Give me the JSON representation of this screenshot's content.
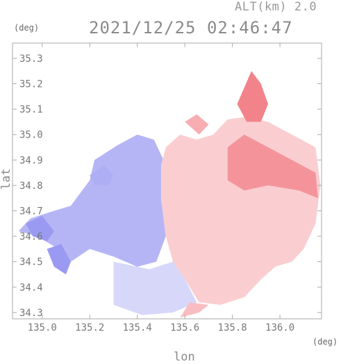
{
  "header": {
    "alt": "ALT(km) 2.0",
    "timestamp": "2021/12/25 02:46:47",
    "lat_unit": "(deg)",
    "lon_unit": "(deg)"
  },
  "chart_data": {
    "type": "heatmap",
    "title": "2021/12/25 02:46:47",
    "subtitle": "ALT(km) 2.0",
    "xlabel": "lon",
    "ylabel": "lat",
    "x_unit": "(deg)",
    "y_unit": "(deg)",
    "xlim": [
      134.875,
      136.175
    ],
    "ylim": [
      34.275,
      35.36
    ],
    "x_ticks": [
      135.0,
      135.2,
      135.4,
      135.6,
      135.8,
      136.0
    ],
    "x_tick_labels": [
      "135.0",
      "135.2",
      "135.4",
      "135.6",
      "135.8",
      "136.0"
    ],
    "y_ticks": [
      34.3,
      34.4,
      34.5,
      34.6,
      34.7,
      34.8,
      34.9,
      35.0,
      35.1,
      35.2,
      35.3
    ],
    "y_tick_labels": [
      "34.3",
      "34.4",
      "34.5",
      "34.6",
      "34.7",
      "34.8",
      "34.9",
      "35.0",
      "35.1",
      "35.2",
      "35.3"
    ],
    "colors": {
      "approaching": "#7878ee",
      "receding": "#ee5a64",
      "frame": "#aaaaaa"
    },
    "regions": [
      {
        "polarity": -1,
        "strength": 0.55,
        "points": [
          [
            134.9,
            34.62
          ],
          [
            134.95,
            34.67
          ],
          [
            135.05,
            34.7
          ],
          [
            135.12,
            34.72
          ],
          [
            135.2,
            34.82
          ],
          [
            135.22,
            34.9
          ],
          [
            135.32,
            34.96
          ],
          [
            135.4,
            35.0
          ],
          [
            135.47,
            34.98
          ],
          [
            135.52,
            34.88
          ],
          [
            135.5,
            34.75
          ],
          [
            135.52,
            34.6
          ],
          [
            135.48,
            34.5
          ],
          [
            135.4,
            34.48
          ],
          [
            135.3,
            34.52
          ],
          [
            135.2,
            34.55
          ],
          [
            135.12,
            34.5
          ],
          [
            135.05,
            34.56
          ],
          [
            134.98,
            34.6
          ]
        ]
      },
      {
        "polarity": -1,
        "strength": 0.3,
        "points": [
          [
            135.3,
            34.5
          ],
          [
            135.45,
            34.47
          ],
          [
            135.55,
            34.5
          ],
          [
            135.6,
            34.43
          ],
          [
            135.65,
            34.34
          ],
          [
            135.55,
            34.3
          ],
          [
            135.42,
            34.29
          ],
          [
            135.3,
            34.33
          ]
        ]
      },
      {
        "polarity": -1,
        "strength": 0.75,
        "points": [
          [
            134.93,
            34.65
          ],
          [
            135.0,
            34.68
          ],
          [
            135.05,
            34.62
          ],
          [
            135.02,
            34.58
          ],
          [
            134.96,
            34.6
          ]
        ]
      },
      {
        "polarity": -1,
        "strength": 0.75,
        "points": [
          [
            135.02,
            34.55
          ],
          [
            135.08,
            34.57
          ],
          [
            135.12,
            34.5
          ],
          [
            135.1,
            34.45
          ],
          [
            135.05,
            34.48
          ]
        ]
      },
      {
        "polarity": -1,
        "strength": 0.6,
        "points": [
          [
            135.2,
            34.84
          ],
          [
            135.26,
            34.88
          ],
          [
            135.3,
            34.84
          ],
          [
            135.28,
            34.8
          ],
          [
            135.22,
            34.8
          ]
        ]
      },
      {
        "polarity": 1,
        "strength": 0.3,
        "points": [
          [
            135.5,
            34.88
          ],
          [
            135.52,
            34.95
          ],
          [
            135.58,
            35.0
          ],
          [
            135.65,
            34.98
          ],
          [
            135.72,
            35.0
          ],
          [
            135.78,
            35.06
          ],
          [
            135.86,
            35.07
          ],
          [
            135.95,
            35.05
          ],
          [
            136.05,
            35.0
          ],
          [
            136.15,
            34.95
          ],
          [
            136.17,
            34.8
          ],
          [
            136.15,
            34.65
          ],
          [
            136.1,
            34.55
          ],
          [
            136.05,
            34.5
          ],
          [
            135.98,
            34.48
          ],
          [
            135.92,
            34.43
          ],
          [
            135.85,
            34.36
          ],
          [
            135.75,
            34.33
          ],
          [
            135.66,
            34.34
          ],
          [
            135.6,
            34.43
          ],
          [
            135.55,
            34.5
          ],
          [
            135.52,
            34.6
          ],
          [
            135.5,
            34.75
          ]
        ]
      },
      {
        "polarity": 1,
        "strength": 0.65,
        "points": [
          [
            135.78,
            34.95
          ],
          [
            135.85,
            35.0
          ],
          [
            135.95,
            34.95
          ],
          [
            136.05,
            34.9
          ],
          [
            136.15,
            34.85
          ],
          [
            136.16,
            34.75
          ],
          [
            136.08,
            34.78
          ],
          [
            135.95,
            34.8
          ],
          [
            135.85,
            34.78
          ],
          [
            135.78,
            34.82
          ]
        ]
      },
      {
        "polarity": 1,
        "strength": 0.75,
        "points": [
          [
            135.82,
            35.12
          ],
          [
            135.88,
            35.25
          ],
          [
            135.92,
            35.2
          ],
          [
            135.95,
            35.12
          ],
          [
            135.92,
            35.05
          ],
          [
            135.86,
            35.05
          ]
        ]
      },
      {
        "polarity": 1,
        "strength": 0.5,
        "points": [
          [
            135.6,
            35.05
          ],
          [
            135.65,
            35.08
          ],
          [
            135.7,
            35.04
          ],
          [
            135.66,
            35.0
          ]
        ]
      },
      {
        "polarity": 1,
        "strength": 0.4,
        "points": [
          [
            135.58,
            34.28
          ],
          [
            135.66,
            34.3
          ],
          [
            135.7,
            34.33
          ],
          [
            135.62,
            34.34
          ]
        ]
      }
    ]
  }
}
